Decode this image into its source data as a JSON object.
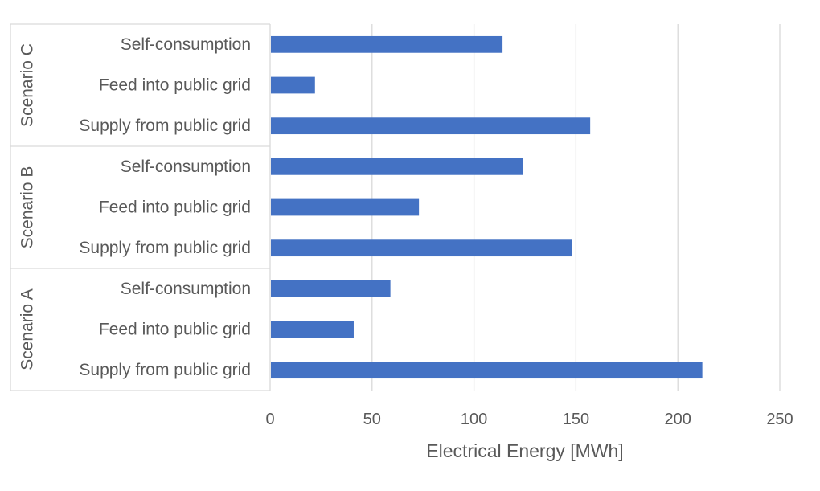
{
  "chart_data": {
    "type": "bar",
    "orientation": "horizontal",
    "title": "",
    "xlabel": "Electrical Energy [MWh]",
    "ylabel": "",
    "xlim": [
      0,
      250
    ],
    "xticks": [
      0,
      50,
      100,
      150,
      200,
      250
    ],
    "grid": true,
    "legend": "none",
    "bar_color": "#4472C4",
    "groups": [
      {
        "name": "Scenario C",
        "categories": [
          "Self-consumption",
          "Feed into public grid",
          "Supply from public grid"
        ],
        "values": [
          114,
          22,
          157
        ]
      },
      {
        "name": "Scenario B",
        "categories": [
          "Self-consumption",
          "Feed into public grid",
          "Supply from public grid"
        ],
        "values": [
          124,
          73,
          148
        ]
      },
      {
        "name": "Scenario A",
        "categories": [
          "Self-consumption",
          "Feed into public grid",
          "Supply from public grid"
        ],
        "values": [
          59,
          41,
          212
        ]
      }
    ]
  }
}
